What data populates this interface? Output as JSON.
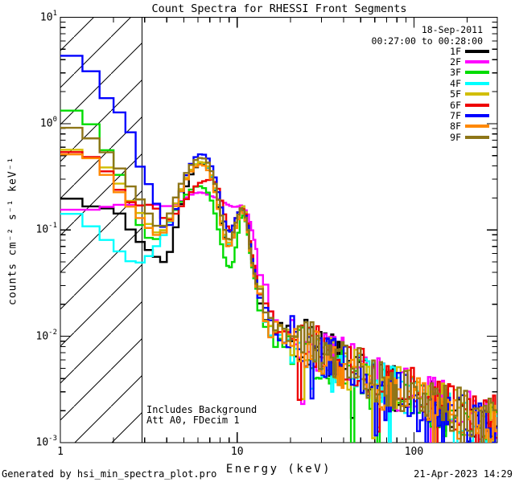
{
  "title": "Count Spectra for RHESSI Front Segments",
  "footer": {
    "left": "Generated by hsi_min_spectra_plot.pro",
    "right": "21-Apr-2023 14:29"
  },
  "chart_data": {
    "type": "line",
    "subtype": "step-spectra-loglog",
    "title": "Count Spectra for RHESSI Front Segments",
    "xlabel": "Energy (keV)",
    "ylabel": "counts cm⁻² s⁻¹ keV⁻¹",
    "xscale": "log",
    "yscale": "log",
    "xlim": [
      1,
      296
    ],
    "ylim": [
      0.001,
      10
    ],
    "grid": false,
    "x_major_ticks": [
      1,
      10,
      100
    ],
    "x_major_tick_labels": [
      "1",
      "10",
      "100"
    ],
    "x_minor_ticks": [
      2,
      3,
      4,
      5,
      6,
      7,
      8,
      9,
      20,
      30,
      40,
      50,
      60,
      70,
      80,
      90,
      200
    ],
    "y_major_tick_exponents": [
      1,
      0,
      -1,
      -2,
      -3
    ],
    "legend": {
      "position": "top-right",
      "date": "18-Sep-2011",
      "time_range": "00:27:00 to 00:28:00"
    },
    "annotations": [
      "Includes Background",
      "Att A0, FDecim 1"
    ],
    "hatch_region": {
      "from_keV": 1.0,
      "to_keV": 2.9,
      "style": "diagonal-hatch",
      "line_spacing_px": 46
    },
    "energies_keV": [
      1,
      1.33,
      1.67,
      2,
      2.33,
      2.67,
      3,
      3.33,
      3.67,
      4,
      4.33,
      4.67,
      5,
      5.33,
      5.67,
      6,
      6.33,
      6.67,
      7,
      7.33,
      7.67,
      8,
      8.5,
      9,
      9.5,
      10,
      10.5,
      11,
      11.5,
      12,
      13,
      15,
      18,
      22,
      30,
      40,
      60,
      90,
      130,
      180,
      250
    ],
    "series": [
      {
        "name": "1F",
        "color": "#000000",
        "values": [
          0.21,
          0.185,
          0.15,
          0.17,
          0.12,
          0.085,
          0.07,
          0.06,
          0.052,
          0.048,
          0.08,
          0.14,
          0.22,
          0.3,
          0.37,
          0.41,
          0.425,
          0.41,
          0.36,
          0.28,
          0.2,
          0.135,
          0.085,
          0.065,
          0.085,
          0.12,
          0.16,
          0.17,
          0.11,
          0.06,
          0.03,
          0.013,
          0.011,
          0.0095,
          0.0072,
          0.0055,
          0.0038,
          0.0029,
          0.0023,
          0.0018,
          0.0014
        ]
      },
      {
        "name": "2F",
        "color": "#ff00ff",
        "values": [
          0.16,
          0.15,
          0.16,
          0.17,
          0.175,
          0.17,
          0.17,
          0.175,
          0.17,
          0.165,
          0.17,
          0.18,
          0.195,
          0.21,
          0.22,
          0.225,
          0.225,
          0.22,
          0.21,
          0.205,
          0.2,
          0.19,
          0.18,
          0.17,
          0.165,
          0.165,
          0.17,
          0.16,
          0.14,
          0.11,
          0.06,
          0.022,
          0.013,
          0.01,
          0.0075,
          0.0058,
          0.004,
          0.0031,
          0.0025,
          0.002,
          0.0016
        ]
      },
      {
        "name": "3F",
        "color": "#00dc00",
        "values": [
          1.35,
          1.3,
          0.75,
          0.42,
          0.26,
          0.13,
          0.095,
          0.075,
          0.09,
          0.11,
          0.14,
          0.17,
          0.2,
          0.23,
          0.25,
          0.26,
          0.255,
          0.24,
          0.21,
          0.17,
          0.12,
          0.085,
          0.055,
          0.042,
          0.05,
          0.08,
          0.13,
          0.14,
          0.09,
          0.05,
          0.025,
          0.011,
          0.009,
          0.008,
          0.006,
          0.0045,
          0.0032,
          0.0025,
          0.002,
          0.0016,
          0.0013
        ]
      },
      {
        "name": "4F",
        "color": "#00ffff",
        "values": [
          0.155,
          0.13,
          0.09,
          0.072,
          0.055,
          0.047,
          0.052,
          0.062,
          0.08,
          0.1,
          0.14,
          0.2,
          0.27,
          0.34,
          0.4,
          0.43,
          0.435,
          0.415,
          0.36,
          0.285,
          0.205,
          0.14,
          0.088,
          0.068,
          0.088,
          0.12,
          0.155,
          0.15,
          0.1,
          0.055,
          0.028,
          0.012,
          0.01,
          0.009,
          0.0068,
          0.0052,
          0.0036,
          0.0028,
          0.0022,
          0.0017,
          0.0013
        ]
      },
      {
        "name": "5F",
        "color": "#d1be00",
        "values": [
          0.62,
          0.52,
          0.44,
          0.34,
          0.22,
          0.16,
          0.13,
          0.1,
          0.09,
          0.11,
          0.15,
          0.21,
          0.28,
          0.34,
          0.4,
          0.43,
          0.44,
          0.42,
          0.37,
          0.29,
          0.21,
          0.14,
          0.09,
          0.07,
          0.09,
          0.12,
          0.16,
          0.17,
          0.11,
          0.06,
          0.03,
          0.013,
          0.011,
          0.0095,
          0.0072,
          0.0055,
          0.0038,
          0.003,
          0.0024,
          0.0019,
          0.0015
        ]
      },
      {
        "name": "6F",
        "color": "#ee0000",
        "values": [
          0.52,
          0.56,
          0.42,
          0.3,
          0.19,
          0.175,
          0.165,
          0.18,
          0.14,
          0.12,
          0.13,
          0.155,
          0.18,
          0.21,
          0.245,
          0.27,
          0.285,
          0.29,
          0.3,
          0.295,
          0.27,
          0.22,
          0.14,
          0.095,
          0.11,
          0.14,
          0.16,
          0.155,
          0.115,
          0.065,
          0.033,
          0.014,
          0.012,
          0.01,
          0.0078,
          0.006,
          0.0042,
          0.0033,
          0.0027,
          0.0021,
          0.0017
        ]
      },
      {
        "name": "7F",
        "color": "#0000ff",
        "values": [
          4.5,
          4.2,
          2.3,
          1.3,
          1.25,
          0.55,
          0.28,
          0.26,
          0.12,
          0.095,
          0.13,
          0.19,
          0.28,
          0.38,
          0.46,
          0.51,
          0.52,
          0.5,
          0.44,
          0.36,
          0.27,
          0.19,
          0.12,
          0.09,
          0.11,
          0.14,
          0.16,
          0.15,
          0.11,
          0.06,
          0.03,
          0.013,
          0.01,
          0.009,
          0.007,
          0.005,
          0.0035,
          0.0028,
          0.0022,
          0.0018,
          0.0014
        ]
      },
      {
        "name": "8F",
        "color": "#ff8800",
        "values": [
          0.47,
          0.56,
          0.4,
          0.27,
          0.19,
          0.145,
          0.115,
          0.095,
          0.085,
          0.105,
          0.14,
          0.2,
          0.27,
          0.33,
          0.38,
          0.41,
          0.415,
          0.39,
          0.34,
          0.27,
          0.19,
          0.13,
          0.082,
          0.065,
          0.085,
          0.115,
          0.15,
          0.14,
          0.095,
          0.052,
          0.026,
          0.012,
          0.01,
          0.009,
          0.0068,
          0.0052,
          0.0036,
          0.0028,
          0.0023,
          0.0018,
          0.0014
        ]
      },
      {
        "name": "9F",
        "color": "#8e7618",
        "values": [
          0.95,
          0.88,
          0.6,
          0.48,
          0.3,
          0.22,
          0.17,
          0.12,
          0.1,
          0.12,
          0.17,
          0.24,
          0.31,
          0.38,
          0.44,
          0.47,
          0.48,
          0.46,
          0.4,
          0.32,
          0.23,
          0.16,
          0.1,
          0.075,
          0.095,
          0.13,
          0.16,
          0.15,
          0.1,
          0.055,
          0.028,
          0.013,
          0.011,
          0.01,
          0.0075,
          0.0058,
          0.004,
          0.0031,
          0.0025,
          0.002,
          0.0016
        ]
      }
    ],
    "tail_noise": {
      "start_keV": 13,
      "dex": 0.22,
      "near_dex": 0.1,
      "spike_probability": 0.06
    }
  }
}
